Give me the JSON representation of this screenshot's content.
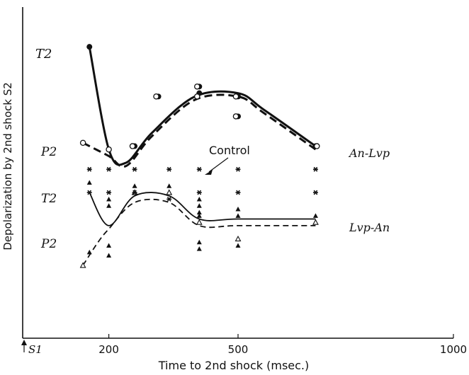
{
  "chart_data": {
    "type": "line",
    "xlabel": "Time to 2nd shock (msec.)",
    "ylabel": "Depolarization by 2nd shock S2",
    "x_origin_label": "S1",
    "xlim": [
      0,
      1000
    ],
    "ylim": [
      0,
      100
    ],
    "xticks": [
      200,
      500,
      1000
    ],
    "grid": false,
    "annotations": {
      "control": "Control",
      "t2_upper": "T2",
      "p2_upper": "P2",
      "t2_lower": "T2",
      "p2_lower": "P2"
    },
    "series": [
      {
        "name": "An-Lvp",
        "line": "T2 (solid)",
        "x": [
          155,
          200,
          240,
          300,
          400,
          500,
          560,
          680
        ],
        "y": [
          88,
          57,
          53,
          62,
          73,
          74,
          69,
          58
        ]
      },
      {
        "name": "An-Lvp",
        "line": "P2 (dashed)",
        "x": [
          140,
          200,
          240,
          300,
          400,
          500,
          560,
          680
        ],
        "y": [
          59,
          55,
          52,
          61,
          72,
          73,
          68,
          57
        ]
      },
      {
        "name": "Control",
        "line": "points",
        "x": [
          155,
          200,
          260,
          350,
          410,
          500,
          680
        ],
        "y": [
          51,
          51,
          51,
          51,
          51,
          51,
          51
        ]
      },
      {
        "name": "Lvp-An",
        "line": "T2 (solid)",
        "x": [
          155,
          200,
          260,
          340,
          410,
          500,
          680
        ],
        "y": [
          44,
          34,
          43,
          43,
          36,
          36,
          36
        ]
      },
      {
        "name": "Lvp-An",
        "line": "P2 (dashed)",
        "x": [
          140,
          175,
          200,
          260,
          340,
          410,
          500,
          680
        ],
        "y": [
          22,
          29,
          33,
          41,
          41,
          34,
          34,
          34
        ]
      }
    ],
    "scatter": {
      "filled_circle": [
        [
          155,
          88
        ],
        [
          200,
          57
        ],
        [
          260,
          58
        ],
        [
          315,
          73
        ],
        [
          410,
          74
        ],
        [
          410,
          76
        ],
        [
          500,
          73
        ],
        [
          500,
          67
        ],
        [
          680,
          58
        ]
      ],
      "open_circle": [
        [
          140,
          59
        ],
        [
          200,
          57
        ],
        [
          255,
          58
        ],
        [
          310,
          73
        ],
        [
          405,
          73
        ],
        [
          405,
          76
        ],
        [
          495,
          73
        ],
        [
          495,
          67
        ],
        [
          683,
          58
        ]
      ],
      "filled_triangle": [
        [
          155,
          47
        ],
        [
          200,
          42
        ],
        [
          200,
          40
        ],
        [
          260,
          46
        ],
        [
          340,
          46
        ],
        [
          410,
          42
        ],
        [
          410,
          40
        ],
        [
          410,
          38
        ],
        [
          410,
          37
        ],
        [
          410,
          29
        ],
        [
          410,
          27
        ],
        [
          500,
          39
        ],
        [
          500,
          37
        ],
        [
          500,
          28
        ],
        [
          680,
          37
        ],
        [
          155,
          26
        ],
        [
          200,
          25
        ],
        [
          200,
          28
        ]
      ],
      "open_triangle": [
        [
          140,
          22
        ],
        [
          260,
          44
        ],
        [
          340,
          44
        ],
        [
          410,
          35
        ],
        [
          500,
          30
        ],
        [
          680,
          35
        ]
      ],
      "star": [
        [
          155,
          51
        ],
        [
          200,
          51
        ],
        [
          260,
          51
        ],
        [
          340,
          51
        ],
        [
          410,
          51
        ],
        [
          500,
          51
        ],
        [
          680,
          51
        ],
        [
          155,
          44
        ],
        [
          200,
          44
        ],
        [
          260,
          44
        ],
        [
          340,
          42
        ],
        [
          410,
          44
        ],
        [
          500,
          44
        ],
        [
          680,
          44
        ]
      ]
    }
  }
}
